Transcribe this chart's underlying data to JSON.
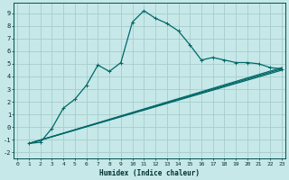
{
  "xlabel": "Humidex (Indice chaleur)",
  "bg_color": "#c6e8e8",
  "grid_color": "#a8cccc",
  "line_color": "#006868",
  "xlim": [
    -0.3,
    23.3
  ],
  "ylim": [
    -2.5,
    9.8
  ],
  "xticks": [
    0,
    1,
    2,
    3,
    4,
    5,
    6,
    7,
    8,
    9,
    10,
    11,
    12,
    13,
    14,
    15,
    16,
    17,
    18,
    19,
    20,
    21,
    22,
    23
  ],
  "yticks": [
    -2,
    -1,
    0,
    1,
    2,
    3,
    4,
    5,
    6,
    7,
    8,
    9
  ],
  "line_wavy": {
    "x": [
      1,
      2,
      3,
      4,
      5,
      6,
      7,
      8,
      9,
      10,
      11,
      12,
      13,
      14,
      15,
      16,
      17,
      18,
      19,
      20,
      21,
      22,
      23
    ],
    "y": [
      -1.3,
      -1.2,
      -0.1,
      1.5,
      2.2,
      3.3,
      4.9,
      4.4,
      5.1,
      8.3,
      9.2,
      8.6,
      8.2,
      7.6,
      6.5,
      5.3,
      5.5,
      5.3,
      5.1,
      5.1,
      5.0,
      4.7,
      4.6
    ]
  },
  "lines_straight": [
    {
      "x": [
        1,
        23
      ],
      "y": [
        -1.3,
        4.7
      ]
    },
    {
      "x": [
        1,
        23
      ],
      "y": [
        -1.3,
        4.6
      ]
    },
    {
      "x": [
        1,
        23
      ],
      "y": [
        -1.3,
        4.5
      ]
    }
  ]
}
